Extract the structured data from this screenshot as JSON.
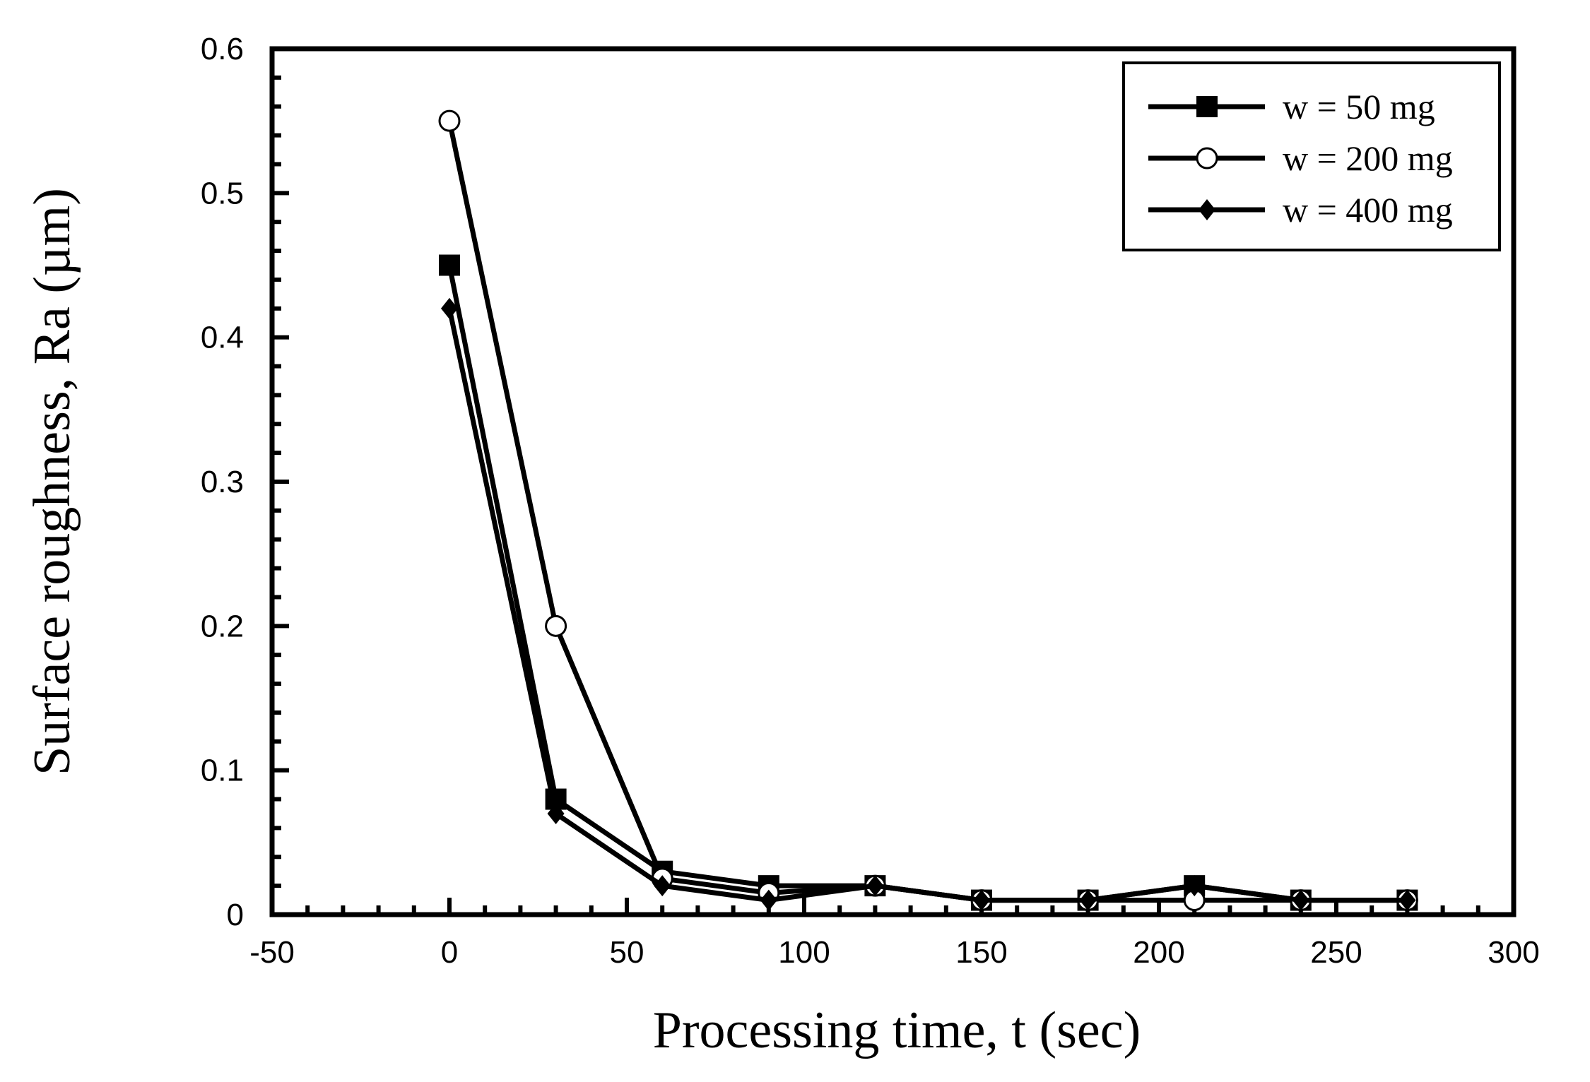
{
  "chart_data": {
    "type": "line",
    "title": "",
    "xlabel": "Processing time, t (sec)",
    "ylabel": "Surface roughness, Ra (µm)",
    "xlim": [
      -50,
      300
    ],
    "ylim": [
      0,
      0.6
    ],
    "xticks": [
      -50,
      0,
      50,
      100,
      150,
      200,
      250,
      300
    ],
    "xtick_labels": [
      "-50",
      "0",
      "50",
      "100",
      "150",
      "200",
      "250",
      "300"
    ],
    "yticks": [
      0,
      0.1,
      0.2,
      0.3,
      0.4,
      0.5,
      0.6
    ],
    "ytick_labels": [
      "0",
      "0.1",
      "0.2",
      "0.3",
      "0.4",
      "0.5",
      "0.6"
    ],
    "legend_position": "top-right",
    "grid": false,
    "series": [
      {
        "name": "w = 50 mg",
        "marker": "filled-square",
        "color": "#000000",
        "x": [
          0,
          30,
          60,
          90,
          120,
          150,
          180,
          210,
          240,
          270
        ],
        "values": [
          0.45,
          0.08,
          0.03,
          0.02,
          0.02,
          0.01,
          0.01,
          0.02,
          0.01,
          0.01
        ]
      },
      {
        "name": "w = 200 mg",
        "marker": "open-circle",
        "color": "#000000",
        "x": [
          0,
          30,
          60,
          90,
          120,
          150,
          180,
          210,
          240,
          270
        ],
        "values": [
          0.55,
          0.2,
          0.025,
          0.015,
          0.02,
          0.01,
          0.01,
          0.01,
          0.01,
          0.01
        ]
      },
      {
        "name": "w = 400 mg",
        "marker": "filled-diamond",
        "color": "#000000",
        "x": [
          0,
          30,
          60,
          90,
          120,
          150,
          180,
          210,
          240,
          270
        ],
        "values": [
          0.42,
          0.07,
          0.02,
          0.01,
          0.02,
          0.01,
          0.01,
          0.02,
          0.01,
          0.01
        ]
      }
    ]
  }
}
